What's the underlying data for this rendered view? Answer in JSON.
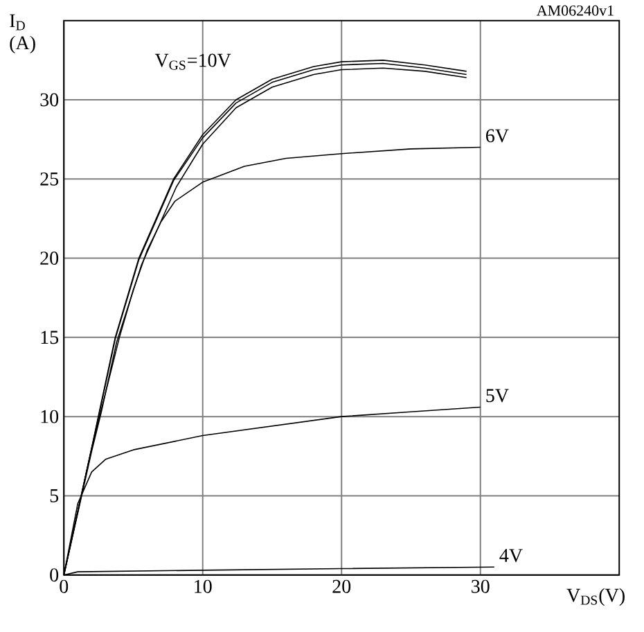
{
  "chart_data": {
    "type": "line",
    "xlabel": "V$_{DS}$(V)",
    "ylabel": "I$_{D}$ (A)",
    "annotations": [
      "AM06240v1"
    ],
    "xlim": [
      0,
      40
    ],
    "ylim": [
      0,
      35
    ],
    "xticks": [
      0,
      10,
      20,
      30
    ],
    "yticks": [
      0,
      5,
      10,
      15,
      20,
      25,
      30
    ],
    "grid": true,
    "line_style": "solid",
    "color": "#000000",
    "series": [
      {
        "name": "V$_{GS}$=10V",
        "x": [
          0,
          1,
          2,
          2.6,
          3.7,
          5.4,
          7.9,
          10,
          12.4,
          15,
          18,
          20,
          23,
          26,
          29
        ],
        "values": [
          0,
          4,
          8,
          10.5,
          15,
          20,
          25,
          27.8,
          30,
          31.3,
          32.1,
          32.4,
          32.5,
          32.2,
          31.8
        ]
      },
      {
        "x": [
          0,
          1,
          2,
          2.6,
          3.7,
          5.4,
          7.9,
          10,
          12.4,
          15,
          18,
          20,
          23,
          26,
          29
        ],
        "values": [
          0,
          4,
          8,
          10.4,
          14.9,
          19.9,
          24.9,
          27.6,
          29.8,
          31.1,
          31.9,
          32.2,
          32.3,
          32.0,
          31.6
        ]
      },
      {
        "x": [
          0,
          1,
          2,
          2.7,
          3.8,
          5.6,
          8.1,
          10,
          12.4,
          15,
          18,
          20,
          23,
          26,
          29
        ],
        "values": [
          0,
          3.9,
          7.8,
          10.3,
          14.7,
          19.6,
          24.5,
          27.2,
          29.5,
          30.8,
          31.6,
          31.9,
          32.0,
          31.8,
          31.4
        ]
      },
      {
        "name": "6V",
        "x": [
          0,
          1,
          2,
          3,
          4,
          5,
          6,
          7,
          8,
          10,
          13,
          16,
          20,
          25,
          30
        ],
        "values": [
          0,
          4,
          8,
          11.5,
          15,
          18,
          20.5,
          22.3,
          23.6,
          24.8,
          25.8,
          26.3,
          26.6,
          26.9,
          27
        ]
      },
      {
        "name": "5V",
        "x": [
          0,
          1,
          2,
          3,
          5,
          10,
          15,
          20,
          25,
          30
        ],
        "values": [
          0,
          4.5,
          6.5,
          7.3,
          7.9,
          8.8,
          9.4,
          10,
          10.3,
          10.6
        ]
      },
      {
        "name": "4V",
        "x": [
          0,
          1,
          10,
          20,
          31
        ],
        "values": [
          0,
          0.2,
          0.3,
          0.4,
          0.5
        ]
      }
    ]
  }
}
